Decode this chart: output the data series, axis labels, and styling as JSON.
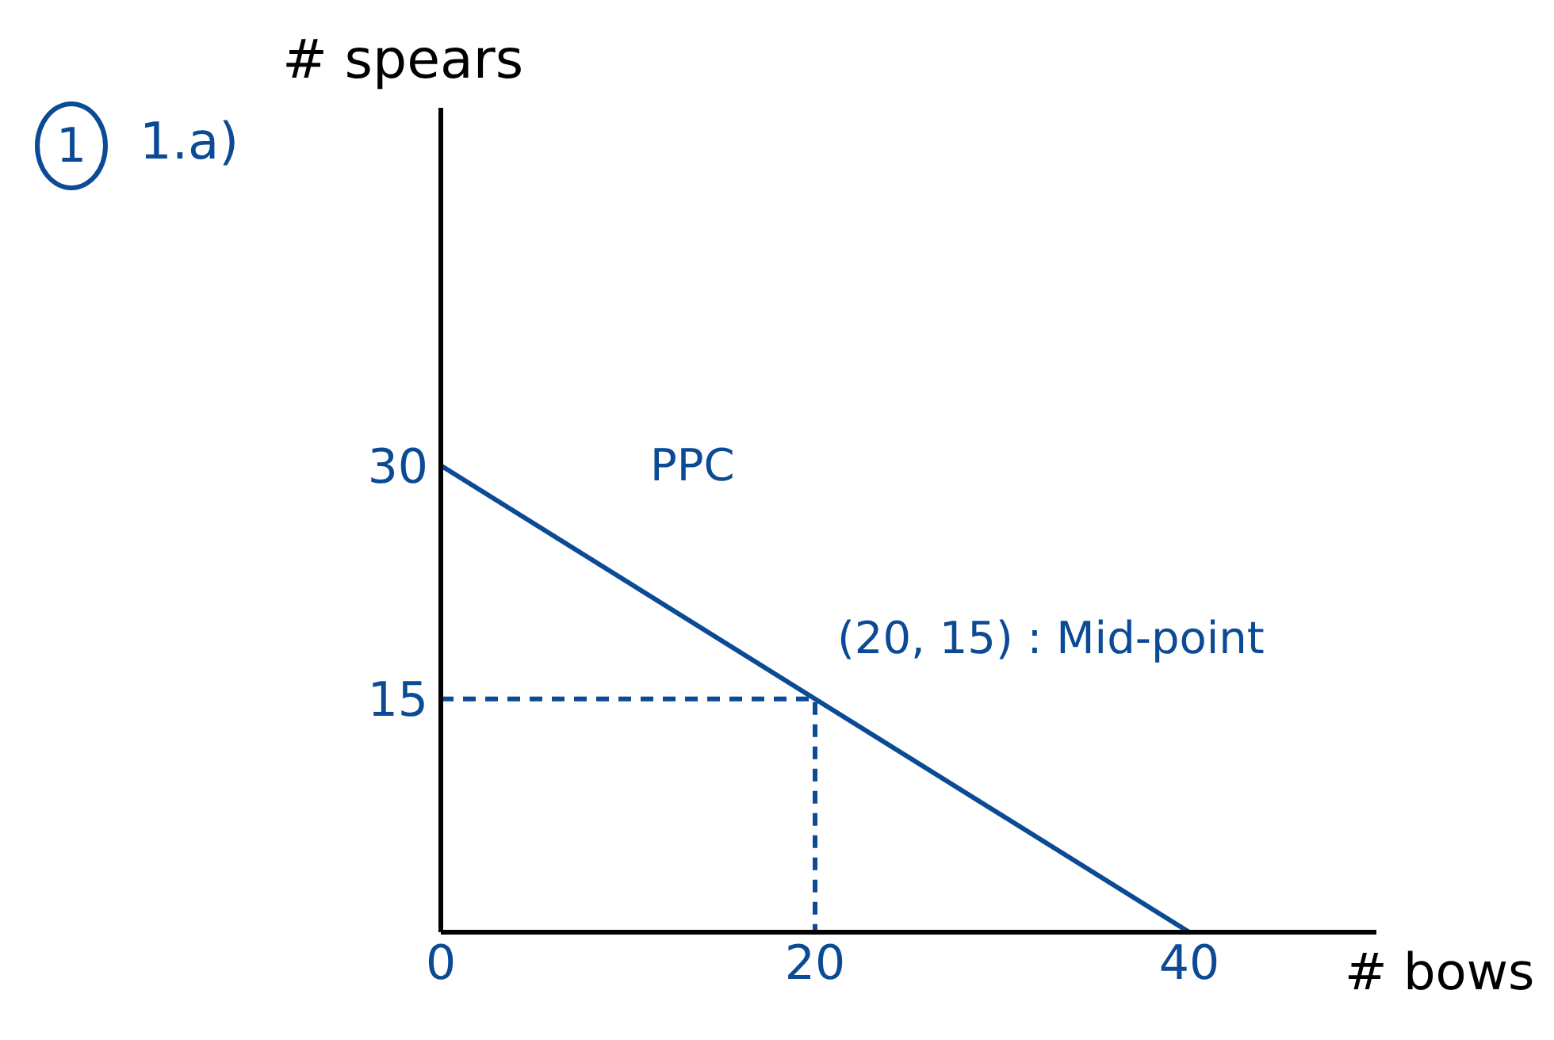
{
  "chart_data": {
    "type": "line",
    "title": "1.a)",
    "xlabel": "# bows",
    "ylabel": "# spears",
    "series": [
      {
        "color": "#0b4a94",
        "x": [
          0,
          40
        ],
        "values": [
          30,
          0
        ],
        "line_style": "solid"
      },
      {
        "color": "#0b4a94",
        "x": [
          0,
          20,
          20
        ],
        "values": [
          15,
          15,
          0
        ],
        "line_style": "dashed"
      }
    ],
    "xlim": [
      0,
      50
    ],
    "ylim": [
      0,
      53
    ],
    "xticks": [
      0,
      20,
      40
    ],
    "yticks": [
      15,
      30
    ],
    "annotations": [
      "1",
      {
        "text": "PPC",
        "x": 10,
        "y": 22.5
      },
      {
        "text": "(20, 15) : Mid-point",
        "x": 20,
        "y": 15
      }
    ],
    "grid": false,
    "marker": "none"
  }
}
